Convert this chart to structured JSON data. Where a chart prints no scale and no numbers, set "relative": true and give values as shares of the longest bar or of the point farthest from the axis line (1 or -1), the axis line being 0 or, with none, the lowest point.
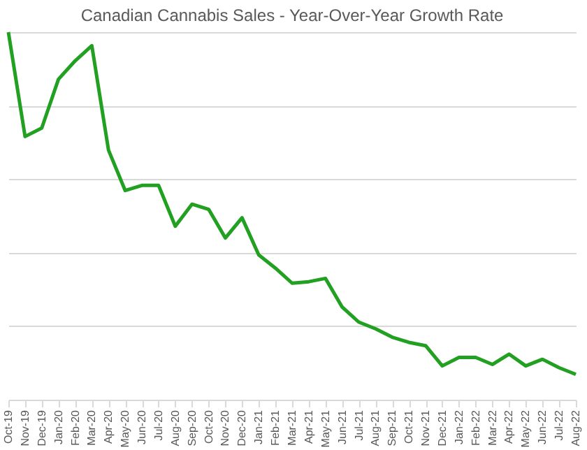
{
  "chart_data": {
    "type": "line",
    "title": "Canadian Cannabis Sales - Year-Over-Year Growth Rate",
    "relative": true,
    "grid": "y",
    "marker": "none",
    "categories": [
      "Oct-19",
      "Nov-19",
      "Dec-19",
      "Jan-20",
      "Feb-20",
      "Mar-20",
      "Apr-20",
      "May-20",
      "Jun-20",
      "Jul-20",
      "Aug-20",
      "Sep-20",
      "Oct-20",
      "Nov-20",
      "Dec-20",
      "Jan-21",
      "Feb-21",
      "Mar-21",
      "Apr-21",
      "May-21",
      "Jun-21",
      "Jul-21",
      "Aug-21",
      "Sep-21",
      "Oct-21",
      "Nov-21",
      "Dec-21",
      "Jan-22",
      "Feb-22",
      "Mar-22",
      "Apr-22",
      "May-22",
      "Jun-22",
      "Jul-22",
      "Aug-22"
    ],
    "series": [
      {
        "color": "#22a022",
        "values": [
          1.0,
          0.716,
          0.739,
          0.872,
          0.922,
          0.963,
          0.679,
          0.569,
          0.583,
          0.583,
          0.472,
          0.532,
          0.518,
          0.44,
          0.495,
          0.394,
          0.358,
          0.317,
          0.321,
          0.33,
          0.252,
          0.211,
          0.193,
          0.17,
          0.156,
          0.147,
          0.092,
          0.115,
          0.115,
          0.096,
          0.124,
          0.092,
          0.11,
          0.087,
          0.069
        ]
      }
    ]
  }
}
